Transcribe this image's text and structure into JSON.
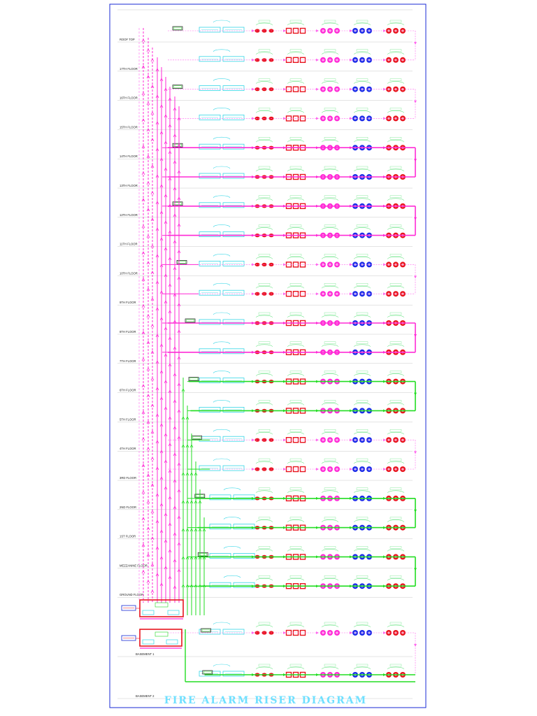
{
  "title": "FIRE ALARM RISER DIAGRAM",
  "colors": {
    "frame": "#1a2ad6",
    "cyan": "#33d6e6",
    "red": "#e8141e",
    "magenta": "#ff2bd6",
    "blue": "#1a2ae8",
    "green": "#22dd22",
    "pink": "#ff66ee",
    "dim": "#a8a8a8"
  },
  "floors": [
    {
      "label": "ROOF TOP",
      "loop": "none"
    },
    {
      "label": "17TH FLOOR",
      "loop": "none"
    },
    {
      "label": "16TH FLOOR",
      "loop": "none"
    },
    {
      "label": "15TH FLOOR",
      "loop": "none"
    },
    {
      "label": "14TH FLOOR",
      "loop": "magenta"
    },
    {
      "label": "13TH FLOOR",
      "loop": "magenta"
    },
    {
      "label": "12TH FLOOR",
      "loop": "magenta"
    },
    {
      "label": "11TH FLOOR",
      "loop": "magenta"
    },
    {
      "label": "10TH FLOOR",
      "loop": "none"
    },
    {
      "label": "9TH FLOOR",
      "loop": "none"
    },
    {
      "label": "8TH FLOOR",
      "loop": "magenta"
    },
    {
      "label": "7TH FLOOR",
      "loop": "magenta"
    },
    {
      "label": "6TH FLOOR",
      "loop": "green"
    },
    {
      "label": "5TH FLOOR",
      "loop": "green"
    },
    {
      "label": "4TH FLOOR",
      "loop": "none"
    },
    {
      "label": "3RD FLOOR",
      "loop": "none"
    },
    {
      "label": "2ND FLOOR",
      "loop": "green"
    },
    {
      "label": "1ST FLOOR",
      "loop": "green"
    },
    {
      "label": "MEZZANINE FLOOR",
      "loop": "green"
    },
    {
      "label": "GROUND FLOOR",
      "loop": "green"
    },
    {
      "label": "BASEMENT 1",
      "loop": "none"
    },
    {
      "label": "BASEMENT 2",
      "loop": "green"
    }
  ]
}
